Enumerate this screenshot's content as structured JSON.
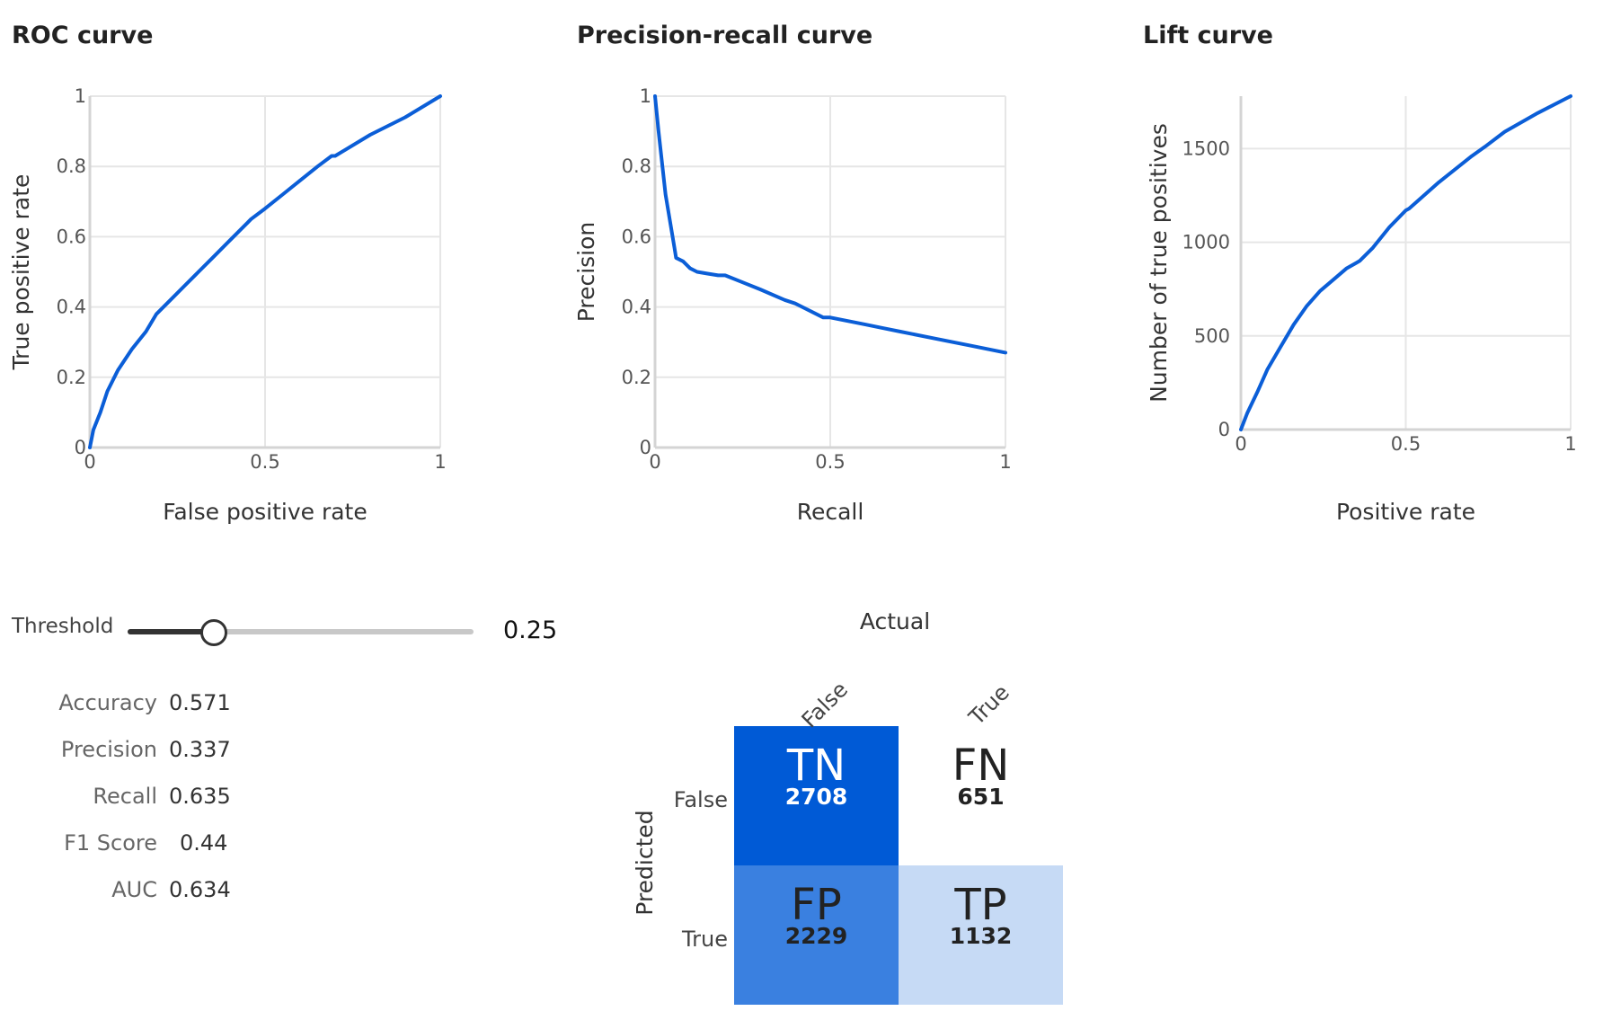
{
  "charts": {
    "roc": {
      "title": "ROC curve"
    },
    "pr": {
      "title": "Precision-recall curve"
    },
    "lift": {
      "title": "Lift curve"
    }
  },
  "chart_data": [
    {
      "type": "line",
      "title": "ROC curve",
      "xlabel": "False positive rate",
      "ylabel": "True positive rate",
      "xlim": [
        0,
        1
      ],
      "ylim": [
        0,
        1
      ],
      "xticks": [
        {
          "v": 0,
          "label": "0"
        },
        {
          "v": 0.5,
          "label": "0.5"
        },
        {
          "v": 1,
          "label": "1"
        }
      ],
      "yticks": [
        {
          "v": 0,
          "label": "0"
        },
        {
          "v": 0.2,
          "label": "0.2"
        },
        {
          "v": 0.4,
          "label": "0.4"
        },
        {
          "v": 0.6,
          "label": "0.6"
        },
        {
          "v": 0.8,
          "label": "0.8"
        },
        {
          "v": 1,
          "label": "1"
        }
      ],
      "grid": true,
      "color": "#0b5ed7",
      "series": [
        {
          "x": [
            0,
            0.01,
            0.03,
            0.05,
            0.08,
            0.12,
            0.16,
            0.19,
            0.23,
            0.27,
            0.3,
            0.31,
            0.35,
            0.4,
            0.45,
            0.46,
            0.5,
            0.55,
            0.6,
            0.65,
            0.69,
            0.7,
            0.8,
            0.9,
            1
          ],
          "y": [
            0,
            0.05,
            0.1,
            0.16,
            0.22,
            0.28,
            0.33,
            0.38,
            0.42,
            0.46,
            0.49,
            0.5,
            0.54,
            0.59,
            0.64,
            0.65,
            0.68,
            0.72,
            0.76,
            0.8,
            0.83,
            0.83,
            0.89,
            0.94,
            1
          ]
        }
      ]
    },
    {
      "type": "line",
      "title": "Precision-recall curve",
      "xlabel": "Recall",
      "ylabel": "Precision",
      "xlim": [
        0,
        1
      ],
      "ylim": [
        0,
        1
      ],
      "xticks": [
        {
          "v": 0,
          "label": "0"
        },
        {
          "v": 0.5,
          "label": "0.5"
        },
        {
          "v": 1,
          "label": "1"
        }
      ],
      "yticks": [
        {
          "v": 0,
          "label": "0"
        },
        {
          "v": 0.2,
          "label": "0.2"
        },
        {
          "v": 0.4,
          "label": "0.4"
        },
        {
          "v": 0.6,
          "label": "0.6"
        },
        {
          "v": 0.8,
          "label": "0.8"
        },
        {
          "v": 1,
          "label": "1"
        }
      ],
      "grid": true,
      "color": "#0b5ed7",
      "series": [
        {
          "x": [
            0,
            0.01,
            0.03,
            0.055,
            0.06,
            0.08,
            0.1,
            0.12,
            0.15,
            0.18,
            0.2,
            0.25,
            0.3,
            0.37,
            0.4,
            0.48,
            0.5,
            0.6,
            0.65,
            0.7,
            0.8,
            0.9,
            1
          ],
          "y": [
            1,
            0.9,
            0.72,
            0.57,
            0.54,
            0.53,
            0.51,
            0.5,
            0.495,
            0.49,
            0.49,
            0.47,
            0.45,
            0.42,
            0.41,
            0.37,
            0.37,
            0.35,
            0.34,
            0.33,
            0.31,
            0.29,
            0.27
          ]
        }
      ]
    },
    {
      "type": "line",
      "title": "Lift curve",
      "xlabel": "Positive rate",
      "ylabel": "Number of true positives",
      "xlim": [
        0,
        1
      ],
      "ylim": [
        0,
        1780
      ],
      "xticks": [
        {
          "v": 0,
          "label": "0"
        },
        {
          "v": 0.5,
          "label": "0.5"
        },
        {
          "v": 1,
          "label": "1"
        }
      ],
      "yticks": [
        {
          "v": 0,
          "label": "0"
        },
        {
          "v": 500,
          "label": "500"
        },
        {
          "v": 1000,
          "label": "1000"
        },
        {
          "v": 1500,
          "label": "1500"
        }
      ],
      "grid": true,
      "color": "#0b5ed7",
      "series": [
        {
          "x": [
            0,
            0.02,
            0.05,
            0.08,
            0.12,
            0.16,
            0.2,
            0.24,
            0.28,
            0.32,
            0.35,
            0.36,
            0.4,
            0.45,
            0.5,
            0.51,
            0.6,
            0.7,
            0.74,
            0.8,
            0.9,
            1
          ],
          "y": [
            0,
            90,
            200,
            320,
            440,
            560,
            660,
            740,
            800,
            860,
            890,
            900,
            970,
            1080,
            1170,
            1180,
            1320,
            1460,
            1510,
            1590,
            1690,
            1780
          ]
        }
      ]
    }
  ],
  "threshold": {
    "label": "Threshold",
    "value": "0.25",
    "level": 0.25
  },
  "metrics": [
    {
      "name": "Accuracy",
      "value": "0.571"
    },
    {
      "name": "Precision",
      "value": "0.337"
    },
    {
      "name": "Recall",
      "value": "0.635"
    },
    {
      "name": "F1 Score",
      "value": "0.44"
    },
    {
      "name": "AUC",
      "value": "0.634"
    }
  ],
  "confusion_matrix": {
    "actual_label": "Actual",
    "predicted_label": "Predicted",
    "col_labels": [
      "False",
      "True"
    ],
    "row_labels": [
      "False",
      "True"
    ],
    "cells": [
      {
        "code": "TN",
        "count": "2708",
        "fill": "#005ad6",
        "text_color": "#ffffff"
      },
      {
        "code": "FN",
        "count": "651",
        "fill": "#ffffff",
        "text_color": "#222222"
      },
      {
        "code": "FP",
        "count": "2229",
        "fill": "#3a80e0",
        "text_color": "#222222"
      },
      {
        "code": "TP",
        "count": "1132",
        "fill": "#c6daf5",
        "text_color": "#222222"
      }
    ]
  }
}
